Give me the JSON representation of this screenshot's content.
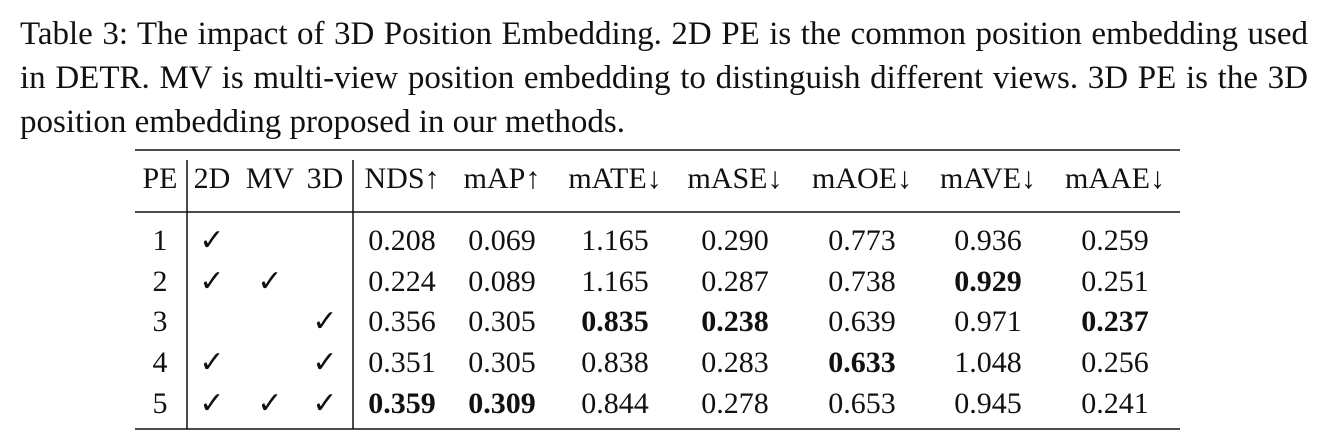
{
  "caption": "Table 3: The impact of 3D Position Embedding. 2D PE is the common position embedding used in DETR. MV is multi-view position embedding to distinguish different views. 3D PE is the 3D position embedding proposed in our methods.",
  "table": {
    "header": [
      "PE",
      "2D",
      "MV",
      "3D",
      "NDS↑",
      "mAP↑",
      "mATE↓",
      "mASE↓",
      "mAOE↓",
      "mAVE↓",
      "mAAE↓"
    ],
    "rows": [
      [
        "1",
        "✓",
        null,
        null,
        "0.208",
        "0.069",
        "1.165",
        "0.290",
        "0.773",
        "0.936",
        "0.259"
      ],
      [
        "2",
        "✓",
        "✓",
        null,
        "0.224",
        "0.089",
        "1.165",
        "0.287",
        "0.738",
        "0.929",
        "0.251"
      ],
      [
        "3",
        null,
        null,
        "✓",
        "0.356",
        "0.305",
        "0.835",
        "0.238",
        "0.639",
        "0.971",
        "0.237"
      ],
      [
        "4",
        "✓",
        null,
        "✓",
        "0.351",
        "0.305",
        "0.838",
        "0.283",
        "0.633",
        "1.048",
        "0.256"
      ],
      [
        "5",
        "✓",
        "✓",
        "✓",
        "0.359",
        "0.309",
        "0.844",
        "0.278",
        "0.653",
        "0.945",
        "0.241"
      ]
    ],
    "bold_cells": [
      [
        1,
        9
      ],
      [
        2,
        6
      ],
      [
        2,
        7
      ],
      [
        2,
        10
      ],
      [
        3,
        8
      ],
      [
        4,
        4
      ],
      [
        4,
        5
      ]
    ]
  }
}
